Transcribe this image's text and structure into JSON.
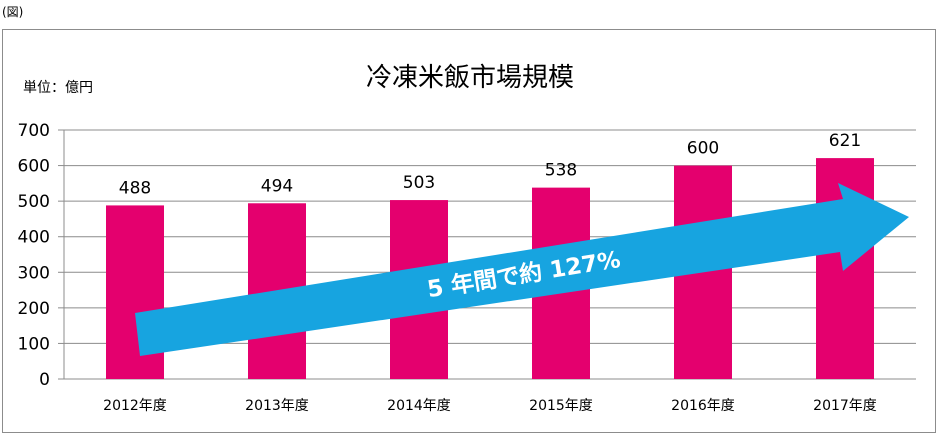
{
  "caption": "(図)",
  "colors": {
    "bar": "#e4006e",
    "arrow": "#17a4e0",
    "grid": "#8c8c8c",
    "axis": "#8c8c8c",
    "arrow_text": "#ffffff"
  },
  "annotation": {
    "text": "5 年間で約 127%",
    "icon": "trend-arrow-icon"
  },
  "chart_data": {
    "type": "bar",
    "title": "冷凍米飯市場規模",
    "unit_label": "単位：億円",
    "xlabel": "",
    "ylabel": "",
    "categories": [
      "2012年度",
      "2013年度",
      "2014年度",
      "2015年度",
      "2016年度",
      "2017年度"
    ],
    "values": [
      488,
      494,
      503,
      538,
      600,
      621
    ],
    "ylim": [
      0,
      700
    ],
    "yticks": [
      0,
      100,
      200,
      300,
      400,
      500,
      600,
      700
    ],
    "grid": true,
    "legend": "none"
  }
}
